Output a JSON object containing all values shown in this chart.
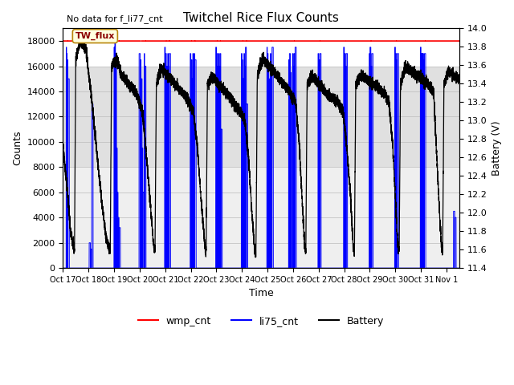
{
  "title": "Twitchel Rice Flux Counts",
  "no_data_text": "No data for f_li77_cnt",
  "xlabel": "Time",
  "ylabel_left": "Counts",
  "ylabel_right": "Battery (V)",
  "xlim": [
    0,
    15.5
  ],
  "ylim_left": [
    0,
    19000
  ],
  "ylim_right": [
    11.4,
    14.0
  ],
  "yticks_left": [
    0,
    2000,
    4000,
    6000,
    8000,
    10000,
    12000,
    14000,
    16000,
    18000
  ],
  "yticks_right": [
    11.4,
    11.6,
    11.8,
    12.0,
    12.2,
    12.4,
    12.6,
    12.8,
    13.0,
    13.2,
    13.4,
    13.6,
    13.8,
    14.0
  ],
  "xtick_labels": [
    "Oct 17",
    "Oct 18",
    "Oct 19",
    "Oct 20",
    "Oct 21",
    "Oct 22",
    "Oct 23",
    "Oct 24",
    "Oct 25",
    "Oct 26",
    "Oct 27",
    "Oct 28",
    "Oct 29",
    "Oct 30",
    "Oct 31",
    "Nov 1"
  ],
  "wmp_color": "#ff0000",
  "li75_color": "#0000ff",
  "battery_color": "#000000",
  "legend_entries": [
    "wmp_cnt",
    "li75_cnt",
    "Battery"
  ],
  "annotation_text": "TW_flux",
  "bg_band_dark": [
    8000,
    16000
  ],
  "bg_band_light": [
    0,
    8000
  ],
  "title_fontsize": 11,
  "label_fontsize": 9,
  "tick_fontsize": 8
}
